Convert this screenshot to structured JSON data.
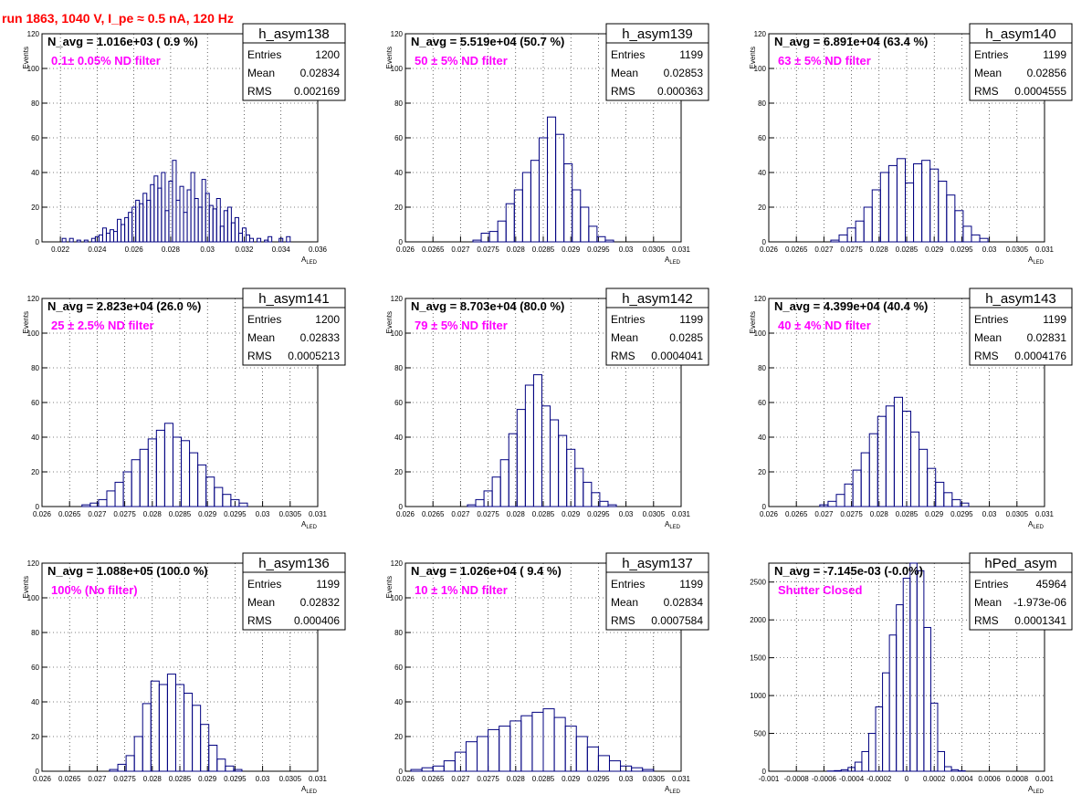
{
  "run_title": "run 1863,  1040 V, I_pe ≈ 0.5 nA, 120 Hz",
  "colors": {
    "line": "#000080",
    "annotation": "#ff00ff",
    "title": "#ff0000",
    "grid": "#000000"
  },
  "stats_labels": {
    "entries": "Entries",
    "mean": "Mean",
    "rms": "RMS"
  },
  "chart_data": [
    {
      "type": "histogram",
      "name": "h_asym138",
      "navg": "N_avg = 1.016e+03 ( 0.9 %)",
      "note": "0.1± 0.05% ND filter",
      "entries": "1200",
      "mean": "0.02834",
      "rms": "0.002169",
      "xlabel": "A",
      "xlabel_sub": "LED",
      "ylabel": "Events",
      "xlim": [
        0.021,
        0.036
      ],
      "ylim": [
        0,
        120
      ],
      "xticks": [
        "0.022",
        "0.024",
        "0.026",
        "0.028",
        "0.03",
        "0.032",
        "0.034",
        "0.036"
      ],
      "yticks": [
        "20",
        "40",
        "60",
        "80",
        "100",
        "120"
      ],
      "bins": [
        [
          0.0222,
          2
        ],
        [
          0.0226,
          2
        ],
        [
          0.023,
          1
        ],
        [
          0.0234,
          1
        ],
        [
          0.0238,
          2
        ],
        [
          0.024,
          3
        ],
        [
          0.0242,
          4
        ],
        [
          0.0244,
          8
        ],
        [
          0.0246,
          5
        ],
        [
          0.0248,
          7
        ],
        [
          0.025,
          6
        ],
        [
          0.0252,
          13
        ],
        [
          0.0254,
          10
        ],
        [
          0.0256,
          14
        ],
        [
          0.0258,
          17
        ],
        [
          0.026,
          20
        ],
        [
          0.0262,
          24
        ],
        [
          0.0264,
          22
        ],
        [
          0.0266,
          28
        ],
        [
          0.0268,
          24
        ],
        [
          0.027,
          33
        ],
        [
          0.0272,
          38
        ],
        [
          0.0274,
          31
        ],
        [
          0.0276,
          40
        ],
        [
          0.0278,
          18
        ],
        [
          0.028,
          35
        ],
        [
          0.0282,
          47
        ],
        [
          0.0284,
          24
        ],
        [
          0.0286,
          32
        ],
        [
          0.0288,
          17
        ],
        [
          0.029,
          30
        ],
        [
          0.0292,
          40
        ],
        [
          0.0294,
          25
        ],
        [
          0.0296,
          20
        ],
        [
          0.0298,
          36
        ],
        [
          0.03,
          28
        ],
        [
          0.0302,
          21
        ],
        [
          0.0304,
          19
        ],
        [
          0.0306,
          25
        ],
        [
          0.0308,
          9
        ],
        [
          0.031,
          18
        ],
        [
          0.0312,
          20
        ],
        [
          0.0314,
          11
        ],
        [
          0.0316,
          14
        ],
        [
          0.0318,
          5
        ],
        [
          0.032,
          8
        ],
        [
          0.0322,
          4
        ],
        [
          0.0324,
          2
        ],
        [
          0.0328,
          2
        ],
        [
          0.0332,
          1
        ],
        [
          0.0334,
          3
        ],
        [
          0.034,
          2
        ],
        [
          0.0344,
          3
        ]
      ]
    },
    {
      "type": "histogram",
      "name": "h_asym139",
      "navg": "N_avg = 5.519e+04 (50.7 %)",
      "note": "50 ± 5% ND filter",
      "entries": "1199",
      "mean": "0.02853",
      "rms": "0.000363",
      "xlabel": "A",
      "xlabel_sub": "LED",
      "ylabel": "Events",
      "xlim": [
        0.026,
        0.031
      ],
      "ylim": [
        0,
        120
      ],
      "xticks": [
        "0.026",
        "0.0265",
        "0.027",
        "0.0275",
        "0.028",
        "0.0285",
        "0.029",
        "0.0295",
        "0.03",
        "0.0305",
        "0.031"
      ],
      "yticks": [
        "20",
        "40",
        "60",
        "80",
        "100",
        "120"
      ],
      "bins": [
        [
          0.0273,
          1
        ],
        [
          0.02745,
          5
        ],
        [
          0.0276,
          6
        ],
        [
          0.02775,
          12
        ],
        [
          0.0279,
          22
        ],
        [
          0.02805,
          30
        ],
        [
          0.0282,
          40
        ],
        [
          0.02835,
          47
        ],
        [
          0.0285,
          60
        ],
        [
          0.02865,
          72
        ],
        [
          0.0288,
          62
        ],
        [
          0.02895,
          45
        ],
        [
          0.0291,
          30
        ],
        [
          0.02925,
          20
        ],
        [
          0.0294,
          9
        ],
        [
          0.02955,
          3
        ],
        [
          0.0297,
          1
        ]
      ]
    },
    {
      "type": "histogram",
      "name": "h_asym140",
      "navg": "N_avg = 6.891e+04 (63.4 %)",
      "note": "63 ± 5% ND filter",
      "entries": "1199",
      "mean": "0.02856",
      "rms": "0.0004555",
      "xlabel": "A",
      "xlabel_sub": "LED",
      "ylabel": "Events",
      "xlim": [
        0.026,
        0.031
      ],
      "ylim": [
        0,
        120
      ],
      "xticks": [
        "0.026",
        "0.0265",
        "0.027",
        "0.0275",
        "0.028",
        "0.0285",
        "0.029",
        "0.0295",
        "0.03",
        "0.0305",
        "0.031"
      ],
      "yticks": [
        "20",
        "40",
        "60",
        "80",
        "100",
        "120"
      ],
      "bins": [
        [
          0.0272,
          1
        ],
        [
          0.02735,
          4
        ],
        [
          0.0275,
          8
        ],
        [
          0.02765,
          12
        ],
        [
          0.0278,
          20
        ],
        [
          0.02795,
          30
        ],
        [
          0.0281,
          40
        ],
        [
          0.02825,
          44
        ],
        [
          0.0284,
          48
        ],
        [
          0.02855,
          34
        ],
        [
          0.0287,
          45
        ],
        [
          0.02885,
          47
        ],
        [
          0.029,
          42
        ],
        [
          0.02915,
          35
        ],
        [
          0.0293,
          27
        ],
        [
          0.02945,
          18
        ],
        [
          0.0296,
          9
        ],
        [
          0.02975,
          4
        ],
        [
          0.0299,
          2
        ]
      ]
    },
    {
      "type": "histogram",
      "name": "h_asym141",
      "navg": "N_avg = 2.823e+04 (26.0 %)",
      "note": "25 ± 2.5% ND filter",
      "entries": "1200",
      "mean": "0.02833",
      "rms": "0.0005213",
      "xlabel": "A",
      "xlabel_sub": "LED",
      "ylabel": "Events",
      "xlim": [
        0.026,
        0.031
      ],
      "ylim": [
        0,
        120
      ],
      "xticks": [
        "0.026",
        "0.0265",
        "0.027",
        "0.0275",
        "0.028",
        "0.0285",
        "0.029",
        "0.0295",
        "0.03",
        "0.0305",
        "0.031"
      ],
      "yticks": [
        "20",
        "40",
        "60",
        "80",
        "100",
        "120"
      ],
      "bins": [
        [
          0.0268,
          1
        ],
        [
          0.02695,
          2
        ],
        [
          0.0271,
          4
        ],
        [
          0.02725,
          9
        ],
        [
          0.0274,
          14
        ],
        [
          0.02755,
          20
        ],
        [
          0.0277,
          27
        ],
        [
          0.02785,
          33
        ],
        [
          0.028,
          39
        ],
        [
          0.02815,
          44
        ],
        [
          0.0283,
          48
        ],
        [
          0.02845,
          40
        ],
        [
          0.0286,
          38
        ],
        [
          0.02875,
          31
        ],
        [
          0.0289,
          24
        ],
        [
          0.02905,
          17
        ],
        [
          0.0292,
          11
        ],
        [
          0.02935,
          7
        ],
        [
          0.0295,
          4
        ],
        [
          0.02965,
          2
        ]
      ]
    },
    {
      "type": "histogram",
      "name": "h_asym142",
      "navg": "N_avg = 8.703e+04 (80.0 %)",
      "note": "79 ± 5% ND filter",
      "entries": "1199",
      "mean": "0.0285",
      "rms": "0.0004041",
      "xlabel": "A",
      "xlabel_sub": "LED",
      "ylabel": "Events",
      "xlim": [
        0.026,
        0.031
      ],
      "ylim": [
        0,
        120
      ],
      "xticks": [
        "0.026",
        "0.0265",
        "0.027",
        "0.0275",
        "0.028",
        "0.0285",
        "0.029",
        "0.0295",
        "0.03",
        "0.0305",
        "0.031"
      ],
      "yticks": [
        "20",
        "40",
        "60",
        "80",
        "100",
        "120"
      ],
      "bins": [
        [
          0.0272,
          1
        ],
        [
          0.02735,
          4
        ],
        [
          0.0275,
          9
        ],
        [
          0.02765,
          17
        ],
        [
          0.0278,
          27
        ],
        [
          0.02795,
          42
        ],
        [
          0.0281,
          56
        ],
        [
          0.02825,
          70
        ],
        [
          0.0284,
          76
        ],
        [
          0.02855,
          58
        ],
        [
          0.0287,
          50
        ],
        [
          0.02885,
          41
        ],
        [
          0.029,
          33
        ],
        [
          0.02915,
          22
        ],
        [
          0.0293,
          14
        ],
        [
          0.02945,
          8
        ],
        [
          0.0296,
          3
        ],
        [
          0.02975,
          1
        ]
      ]
    },
    {
      "type": "histogram",
      "name": "h_asym143",
      "navg": "N_avg = 4.399e+04 (40.4 %)",
      "note": "40 ± 4% ND filter",
      "entries": "1199",
      "mean": "0.02831",
      "rms": "0.0004176",
      "xlabel": "A",
      "xlabel_sub": "LED",
      "ylabel": "Events",
      "xlim": [
        0.026,
        0.031
      ],
      "ylim": [
        0,
        120
      ],
      "xticks": [
        "0.026",
        "0.0265",
        "0.027",
        "0.0275",
        "0.028",
        "0.0285",
        "0.029",
        "0.0295",
        "0.03",
        "0.0305",
        "0.031"
      ],
      "yticks": [
        "20",
        "40",
        "60",
        "80",
        "100",
        "120"
      ],
      "bins": [
        [
          0.027,
          1
        ],
        [
          0.02715,
          3
        ],
        [
          0.0273,
          7
        ],
        [
          0.02745,
          13
        ],
        [
          0.0276,
          21
        ],
        [
          0.02775,
          31
        ],
        [
          0.0279,
          42
        ],
        [
          0.02805,
          52
        ],
        [
          0.0282,
          58
        ],
        [
          0.02835,
          63
        ],
        [
          0.0285,
          55
        ],
        [
          0.02865,
          43
        ],
        [
          0.0288,
          33
        ],
        [
          0.02895,
          22
        ],
        [
          0.0291,
          14
        ],
        [
          0.02925,
          8
        ],
        [
          0.0294,
          4
        ],
        [
          0.02955,
          2
        ]
      ]
    },
    {
      "type": "histogram",
      "name": "h_asym136",
      "navg": "N_avg = 1.088e+05 (100.0 %)",
      "note": "100% (No filter)",
      "entries": "1199",
      "mean": "0.02832",
      "rms": "0.000406",
      "xlabel": "A",
      "xlabel_sub": "LED",
      "ylabel": "Events",
      "xlim": [
        0.026,
        0.031
      ],
      "ylim": [
        0,
        120
      ],
      "xticks": [
        "0.026",
        "0.0265",
        "0.027",
        "0.0275",
        "0.028",
        "0.0285",
        "0.029",
        "0.0295",
        "0.03",
        "0.0305",
        "0.031"
      ],
      "yticks": [
        "20",
        "40",
        "60",
        "80",
        "100",
        "120"
      ],
      "bins": [
        [
          0.0273,
          1
        ],
        [
          0.02745,
          4
        ],
        [
          0.0276,
          9
        ],
        [
          0.02775,
          20
        ],
        [
          0.0279,
          39
        ],
        [
          0.02805,
          52
        ],
        [
          0.0282,
          50
        ],
        [
          0.02835,
          56
        ],
        [
          0.0285,
          50
        ],
        [
          0.02865,
          45
        ],
        [
          0.0288,
          38
        ],
        [
          0.02895,
          27
        ],
        [
          0.0291,
          15
        ],
        [
          0.02925,
          7
        ],
        [
          0.0294,
          3
        ],
        [
          0.02955,
          1
        ]
      ]
    },
    {
      "type": "histogram",
      "name": "h_asym137",
      "navg": "N_avg = 1.026e+04 ( 9.4 %)",
      "note": "10 ± 1% ND filter",
      "entries": "1199",
      "mean": "0.02834",
      "rms": "0.0007584",
      "xlabel": "A",
      "xlabel_sub": "LED",
      "ylabel": "Events",
      "xlim": [
        0.026,
        0.031
      ],
      "ylim": [
        0,
        120
      ],
      "xticks": [
        "0.026",
        "0.0265",
        "0.027",
        "0.0275",
        "0.028",
        "0.0285",
        "0.029",
        "0.0295",
        "0.03",
        "0.0305",
        "0.031"
      ],
      "yticks": [
        "20",
        "40",
        "60",
        "80",
        "100",
        "120"
      ],
      "bins": [
        [
          0.0262,
          1
        ],
        [
          0.0264,
          2
        ],
        [
          0.0266,
          3
        ],
        [
          0.0268,
          6
        ],
        [
          0.027,
          11
        ],
        [
          0.0272,
          17
        ],
        [
          0.0274,
          20
        ],
        [
          0.0276,
          24
        ],
        [
          0.0278,
          26
        ],
        [
          0.028,
          29
        ],
        [
          0.0282,
          32
        ],
        [
          0.0284,
          34
        ],
        [
          0.0286,
          36
        ],
        [
          0.0288,
          31
        ],
        [
          0.029,
          26
        ],
        [
          0.0292,
          20
        ],
        [
          0.0294,
          14
        ],
        [
          0.0296,
          9
        ],
        [
          0.0298,
          6
        ],
        [
          0.03,
          3
        ],
        [
          0.0302,
          2
        ],
        [
          0.0304,
          1
        ]
      ]
    },
    {
      "type": "histogram",
      "name": "hPed_asym",
      "navg": "N_avg = -7.145e-03 (-0.0%)",
      "note": "Shutter Closed",
      "entries": "45964",
      "mean": "-1.973e-06",
      "rms": "0.0001341",
      "xlabel": "A",
      "xlabel_sub": "LED",
      "ylabel": "",
      "xlim": [
        -0.001,
        0.001
      ],
      "ylim": [
        0,
        2750
      ],
      "xticks": [
        "-0.001",
        "-0.0008",
        "-0.0006",
        "-0.0004",
        "-0.0002",
        "0",
        "0.0002",
        "0.0004",
        "0.0006",
        "0.0008",
        "0.001"
      ],
      "yticks": [
        "500",
        "1000",
        "1500",
        "2000",
        "2500"
      ],
      "bins": [
        [
          -0.00055,
          3
        ],
        [
          -0.0005,
          8
        ],
        [
          -0.00045,
          20
        ],
        [
          -0.0004,
          50
        ],
        [
          -0.00035,
          120
        ],
        [
          -0.0003,
          260
        ],
        [
          -0.00025,
          500
        ],
        [
          -0.0002,
          850
        ],
        [
          -0.00015,
          1300
        ],
        [
          -0.0001,
          1800
        ],
        [
          -5e-05,
          2200
        ],
        [
          0,
          2550
        ],
        [
          5e-05,
          2750
        ],
        [
          0.0001,
          2650
        ],
        [
          0.00015,
          1900
        ],
        [
          0.0002,
          900
        ],
        [
          0.00025,
          260
        ],
        [
          0.0003,
          60
        ],
        [
          0.00035,
          20
        ],
        [
          0.0004,
          5
        ]
      ]
    }
  ]
}
